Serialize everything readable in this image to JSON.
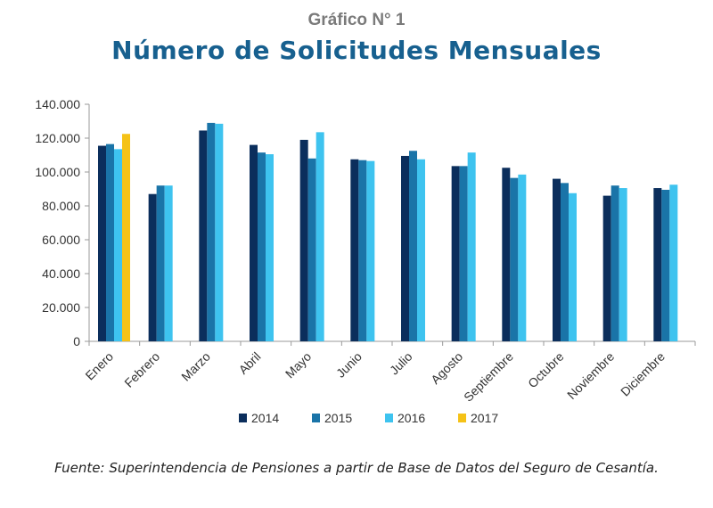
{
  "header": {
    "supertitle": "Gráfico N° 1",
    "title": "Número de Solicitudes Mensuales"
  },
  "source": "Fuente: Superintendencia de Pensiones a partir de Base de Datos del Seguro de Cesantía.",
  "chart_data": {
    "type": "bar",
    "title": "Número de Solicitudes Mensuales",
    "categories": [
      "Enero",
      "Febrero",
      "Marzo",
      "Abril",
      "Mayo",
      "Junio",
      "Julio",
      "Agosto",
      "Septiembre",
      "Octubre",
      "Noviembre",
      "Diciembre"
    ],
    "series": [
      {
        "name": "2014",
        "color": "#0b2e5c",
        "values": [
          115500,
          87000,
          124500,
          116000,
          119000,
          107500,
          109500,
          103500,
          102500,
          96000,
          86000,
          90500
        ]
      },
      {
        "name": "2015",
        "color": "#1a74a8",
        "values": [
          116500,
          92000,
          129000,
          111500,
          108000,
          107000,
          112500,
          103500,
          96500,
          93500,
          92000,
          89500
        ]
      },
      {
        "name": "2016",
        "color": "#3ec3ef",
        "values": [
          113500,
          92000,
          128500,
          110500,
          123500,
          106500,
          107500,
          111500,
          98500,
          87500,
          90500,
          92500
        ]
      },
      {
        "name": "2017",
        "color": "#f5c217",
        "values": [
          122500,
          null,
          null,
          null,
          null,
          null,
          null,
          null,
          null,
          null,
          null,
          null
        ]
      }
    ],
    "yticks": [
      "0",
      "20.000",
      "40.000",
      "60.000",
      "80.000",
      "100.000",
      "120.000",
      "140.000"
    ],
    "ylim": [
      0,
      140000
    ],
    "grid": false,
    "legend_position": "bottom"
  }
}
